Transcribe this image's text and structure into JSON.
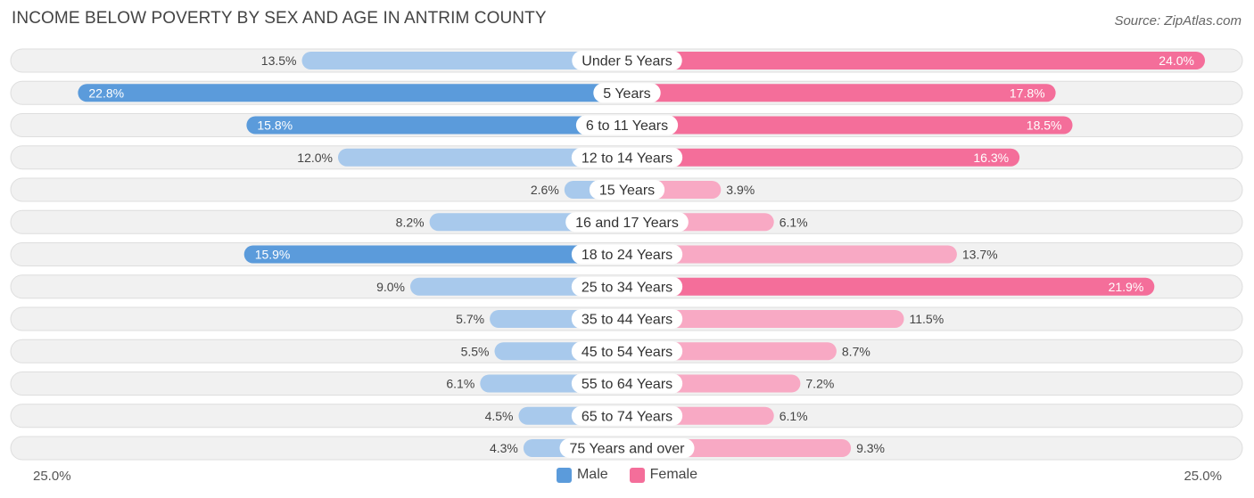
{
  "header": {
    "title": "INCOME BELOW POVERTY BY SEX AND AGE IN ANTRIM COUNTY",
    "source": "Source: ZipAtlas.com"
  },
  "axis": {
    "left_label": "25.0%",
    "right_label": "25.0%"
  },
  "legend": {
    "male_label": "Male",
    "female_label": "Female"
  },
  "colors": {
    "male_strong": "#5b9bdb",
    "male_light": "#a8c9ec",
    "female_strong": "#f46e9a",
    "female_light": "#f8a9c4",
    "row_bg": "#f1f1f1",
    "row_border": "#dedede"
  },
  "chart_data": {
    "type": "bar",
    "orientation": "horizontal-diverging",
    "title": "INCOME BELOW POVERTY BY SEX AND AGE IN ANTRIM COUNTY",
    "xlim": [
      -25,
      25
    ],
    "categories": [
      "Under 5 Years",
      "5 Years",
      "6 to 11 Years",
      "12 to 14 Years",
      "15 Years",
      "16 and 17 Years",
      "18 to 24 Years",
      "25 to 34 Years",
      "35 to 44 Years",
      "45 to 54 Years",
      "55 to 64 Years",
      "65 to 74 Years",
      "75 Years and over"
    ],
    "series": [
      {
        "name": "Male",
        "values": [
          13.5,
          22.8,
          15.8,
          12.0,
          2.6,
          8.2,
          15.9,
          9.0,
          5.7,
          5.5,
          6.1,
          4.5,
          4.3
        ],
        "labels": [
          "13.5%",
          "22.8%",
          "15.8%",
          "12.0%",
          "2.6%",
          "8.2%",
          "15.9%",
          "9.0%",
          "5.7%",
          "5.5%",
          "6.1%",
          "4.5%",
          "4.3%"
        ]
      },
      {
        "name": "Female",
        "values": [
          24.0,
          17.8,
          18.5,
          16.3,
          3.9,
          6.1,
          13.7,
          21.9,
          11.5,
          8.7,
          7.2,
          6.1,
          9.3
        ],
        "labels": [
          "24.0%",
          "17.8%",
          "18.5%",
          "16.3%",
          "3.9%",
          "6.1%",
          "13.7%",
          "21.9%",
          "11.5%",
          "8.7%",
          "7.2%",
          "6.1%",
          "9.3%"
        ]
      }
    ]
  }
}
